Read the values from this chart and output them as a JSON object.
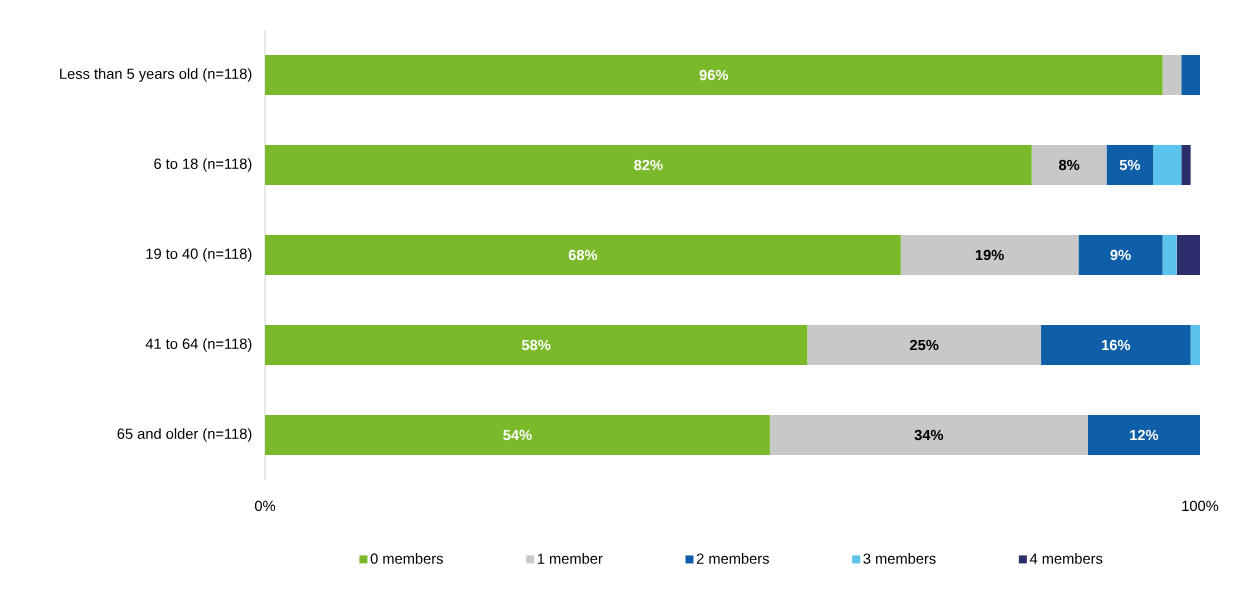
{
  "chart_data": {
    "type": "bar",
    "orientation": "horizontal",
    "stacked": true,
    "categories": [
      "Less than 5 years old (n=118)",
      "6 to 18 (n=118)",
      "19 to 40 (n=118)",
      "41 to 64 (n=118)",
      "65 and older (n=118)"
    ],
    "series": [
      {
        "name": "0 members",
        "color": "#7ab929",
        "values": [
          96,
          82,
          68,
          58,
          54
        ],
        "value_labels": [
          "96%",
          "82%",
          "68%",
          "58%",
          "54%"
        ]
      },
      {
        "name": "1 member",
        "color": "#c8c8c8",
        "values": [
          2,
          8,
          19,
          25,
          34
        ],
        "value_labels": [
          null,
          "8%",
          "19%",
          "25%",
          "34%"
        ]
      },
      {
        "name": "2 members",
        "color": "#0e5ea8",
        "values": [
          2,
          5,
          9,
          16,
          12
        ],
        "value_labels": [
          null,
          "5%",
          "9%",
          "16%",
          "12%"
        ]
      },
      {
        "name": "3 members",
        "color": "#5bc4ec",
        "values": [
          0,
          3,
          1.5,
          1,
          0
        ],
        "value_labels": [
          null,
          null,
          null,
          null,
          null
        ]
      },
      {
        "name": "4 members",
        "color": "#2c2d6b",
        "values": [
          0,
          1,
          2.5,
          0,
          0
        ],
        "value_labels": [
          null,
          null,
          null,
          null,
          null
        ]
      }
    ],
    "xlim": [
      0,
      100
    ],
    "xticks": [
      {
        "value": 0,
        "label": "0%"
      },
      {
        "value": 100,
        "label": "100%"
      }
    ],
    "grid": false,
    "legend": "bottom"
  }
}
